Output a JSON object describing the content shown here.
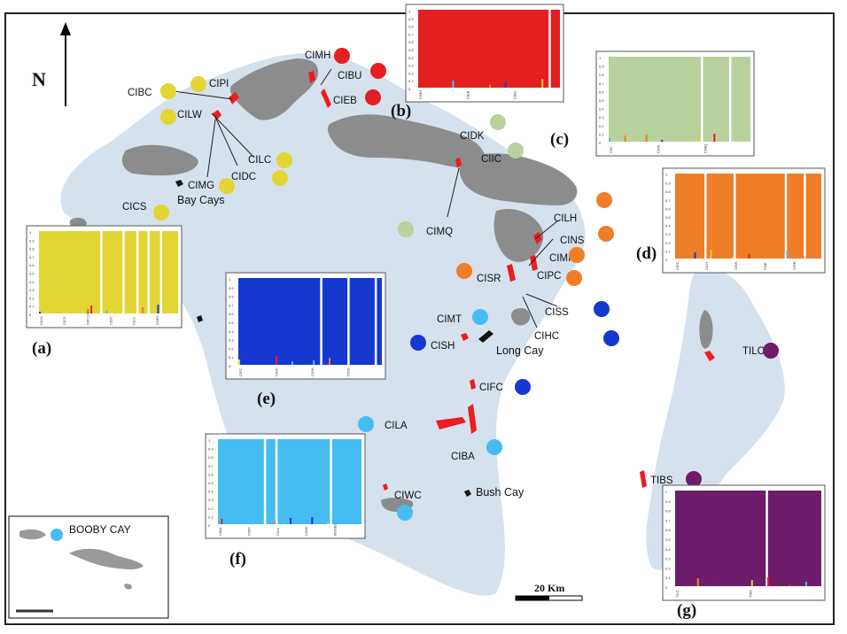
{
  "north": "N",
  "scale": "20 Km",
  "inset_label": "BOOBY CAY",
  "colors": {
    "ocean": "#d6e1ee",
    "land": "#8c8c8c",
    "survey": "#ee1c1c",
    "yellow": "#e2d534",
    "red": "#e41f1f",
    "green": "#b9d19c",
    "orange": "#f07d27",
    "blue": "#1538d0",
    "cyan": "#45bdf2",
    "purple": "#6e1c6a"
  },
  "sites": [
    {
      "name": "CIPI",
      "group": "yellow"
    },
    {
      "name": "CIBC",
      "group": "yellow"
    },
    {
      "name": "CILW",
      "group": "yellow"
    },
    {
      "name": "CILC",
      "group": "yellow"
    },
    {
      "name": "CIDC",
      "group": "yellow"
    },
    {
      "name": "CIMG",
      "group": "yellow"
    },
    {
      "name": "CICS",
      "group": "yellow"
    },
    {
      "name": "CIMH",
      "group": "red"
    },
    {
      "name": "CIBU",
      "group": "red"
    },
    {
      "name": "CIEB",
      "group": "red"
    },
    {
      "name": "CIDK",
      "group": "green"
    },
    {
      "name": "CIIC",
      "group": "green"
    },
    {
      "name": "CIMQ",
      "group": "green"
    },
    {
      "name": "CILH",
      "group": "orange"
    },
    {
      "name": "CINS",
      "group": "orange"
    },
    {
      "name": "CIMI",
      "group": "orange"
    },
    {
      "name": "CIPC",
      "group": "orange"
    },
    {
      "name": "CISR",
      "group": "orange"
    },
    {
      "name": "CISS",
      "group": "blue"
    },
    {
      "name": "CIHC",
      "group": "blue"
    },
    {
      "name": "CISH",
      "group": "blue"
    },
    {
      "name": "CIFC",
      "group": "blue"
    },
    {
      "name": "CIMT",
      "group": "cyan"
    },
    {
      "name": "CILA",
      "group": "cyan"
    },
    {
      "name": "CIBA",
      "group": "cyan"
    },
    {
      "name": "CIWC",
      "group": "cyan"
    },
    {
      "name": "TILC",
      "group": "purple"
    },
    {
      "name": "TIBS",
      "group": "purple"
    }
  ],
  "places": [
    "Bay Cays",
    "Long Cay",
    "Bush Cay"
  ],
  "panels": [
    {
      "letter": "(a)",
      "color": "yellow",
      "yticks": [
        "1",
        "0.9",
        "0.8",
        "0.7",
        "0.6",
        "0.5",
        "0.4",
        "0.3",
        "0.2",
        "0.1",
        "0"
      ],
      "xlabels": [
        "CILW",
        "CICS",
        "CIPI CIBC",
        "CIDC",
        "CILC",
        "CIMG"
      ]
    },
    {
      "letter": "(b)",
      "color": "red",
      "yticks": [
        "1",
        "0.9",
        "0.8",
        "0.7",
        "0.6",
        "0.5",
        "0.4",
        "0.3",
        "0.2",
        "0.1",
        "0"
      ],
      "xlabels": [
        "CIMH",
        "CIEB",
        "CIBU"
      ]
    },
    {
      "letter": "(c)",
      "color": "green",
      "yticks": [
        "1",
        "0.9",
        "0.8",
        "0.7",
        "0.6",
        "0.5",
        "0.4",
        "0.3",
        "0.2",
        "0.1",
        "0"
      ],
      "xlabels": [
        "CIIC",
        "CIDK",
        "CIMQ"
      ]
    },
    {
      "letter": "(d)",
      "color": "orange",
      "yticks": [
        "1",
        "0.9",
        "0.8",
        "0.7",
        "0.6",
        "0.5",
        "0.4",
        "0.3",
        "0.2",
        "0.1",
        "0"
      ],
      "xlabels": [
        "CIPC",
        "CILH",
        "CINS",
        "CIMI",
        "CISR"
      ]
    },
    {
      "letter": "(e)",
      "color": "blue",
      "yticks": [
        "1",
        "0.9",
        "0.8",
        "0.7",
        "0.6",
        "0.5",
        "0.4",
        "0.3",
        "0.2",
        "0.1",
        "0"
      ],
      "xlabels": [
        "CIFC",
        "CIHC",
        "CISH",
        "CISS"
      ]
    },
    {
      "letter": "(f)",
      "color": "cyan",
      "yticks": [
        "1",
        "0.9",
        "0.8",
        "0.7",
        "0.6",
        "0.5",
        "0.4",
        "0.3",
        "0.2",
        "0.1",
        "0"
      ],
      "xlabels": [
        "CIBA",
        "CIMT",
        "CILA",
        "CIWC",
        "BOOBY"
      ]
    },
    {
      "letter": "(g)",
      "color": "purple",
      "yticks": [
        "1",
        "0.9",
        "0.8",
        "0.7",
        "0.6",
        "0.5",
        "0.4",
        "0.3",
        "0.2",
        "0.1",
        "0"
      ],
      "xlabels": [
        "TILC",
        "TIBS"
      ]
    }
  ]
}
